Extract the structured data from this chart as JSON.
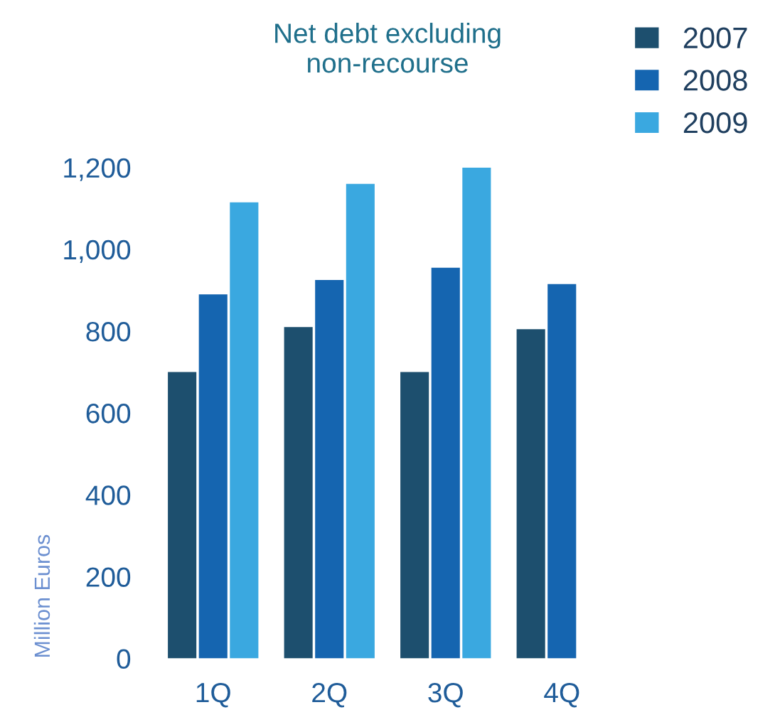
{
  "chart_data": {
    "type": "bar",
    "title": "Net debt excluding\nnon-recourse",
    "ylabel": "Million Euros",
    "categories": [
      "1Q",
      "2Q",
      "3Q",
      "4Q"
    ],
    "series": [
      {
        "name": "2007",
        "color": "#1d4f6e",
        "values": [
          700,
          810,
          700,
          805
        ]
      },
      {
        "name": "2008",
        "color": "#1565b0",
        "values": [
          890,
          925,
          955,
          915
        ]
      },
      {
        "name": "2009",
        "color": "#3aa8e0",
        "values": [
          1115,
          1160,
          1200,
          null
        ]
      }
    ],
    "ylim": [
      0,
      1200
    ],
    "yticks": [
      0,
      200,
      400,
      600,
      800,
      {
        "value": 1000,
        "label": "1,000"
      },
      {
        "value": 1200,
        "label": "1,200"
      }
    ],
    "legend": "top right",
    "grid": false
  }
}
